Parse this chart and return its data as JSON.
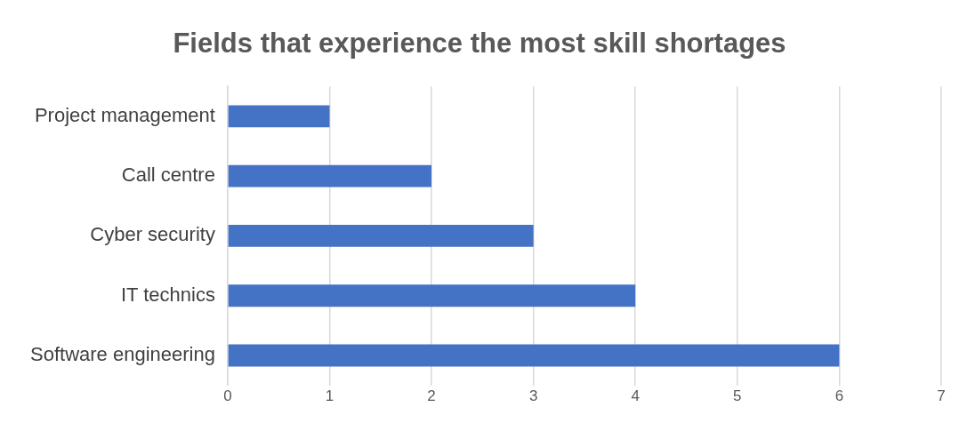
{
  "chart_data": {
    "type": "bar",
    "orientation": "horizontal",
    "title": "Fields that experience the most skill shortages",
    "categories": [
      "Project management",
      "Call centre",
      "Cyber security",
      "IT technics",
      "Software engineering"
    ],
    "values": [
      1,
      2,
      3,
      4,
      6
    ],
    "color": "#4472c4",
    "xlim": [
      0,
      7
    ],
    "xticks": [
      0,
      1,
      2,
      3,
      4,
      5,
      6,
      7
    ],
    "grid": "x",
    "legend": false
  }
}
